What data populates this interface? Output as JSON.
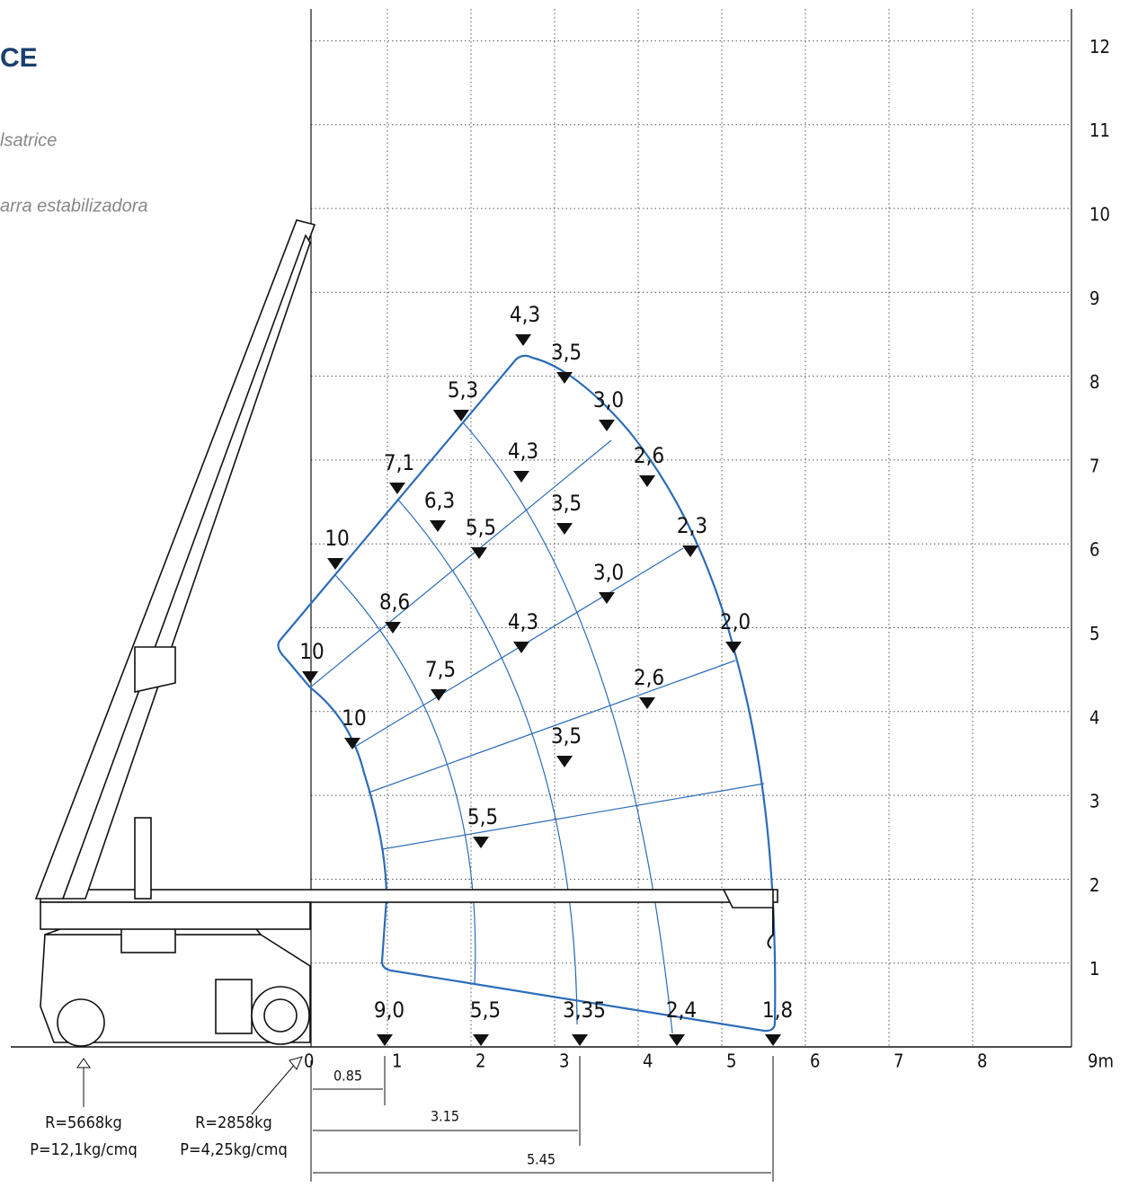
{
  "header": {
    "title": "CE",
    "lines": [
      "lsatrice",
      "arra estabilizadora"
    ]
  },
  "axes": {
    "x_labels": [
      "0",
      "1",
      "2",
      "3",
      "4",
      "5",
      "6",
      "7",
      "8",
      "9m"
    ],
    "y_labels": [
      "12",
      "11",
      "10",
      "9",
      "8",
      "7",
      "6",
      "5",
      "4",
      "3",
      "2",
      "1"
    ]
  },
  "loads": [
    {
      "label": "4,3"
    },
    {
      "label": "3,5"
    },
    {
      "label": "5,3"
    },
    {
      "label": "3,0"
    },
    {
      "label": "4,3"
    },
    {
      "label": "2,6"
    },
    {
      "label": "7,1"
    },
    {
      "label": "6,3"
    },
    {
      "label": "3,5"
    },
    {
      "label": "2,3"
    },
    {
      "label": "10"
    },
    {
      "label": "5,5"
    },
    {
      "label": "3,0"
    },
    {
      "label": "8,6"
    },
    {
      "label": "2,0"
    },
    {
      "label": "4,3"
    },
    {
      "label": "10"
    },
    {
      "label": "7,5"
    },
    {
      "label": "2,6"
    },
    {
      "label": "10"
    },
    {
      "label": "3,5"
    },
    {
      "label": "5,5"
    }
  ],
  "ground_loads": [
    {
      "label": "9,0"
    },
    {
      "label": "5,5"
    },
    {
      "label": "3,35"
    },
    {
      "label": "2,4"
    },
    {
      "label": "1,8"
    }
  ],
  "dimensions": [
    "0.85",
    "3.15",
    "5.45"
  ],
  "reactions": [
    {
      "r": "R=5668kg",
      "p": "P=12,1kg/cmq"
    },
    {
      "r": "R=2858kg",
      "p": "P=4,25kg/cmq"
    }
  ]
}
